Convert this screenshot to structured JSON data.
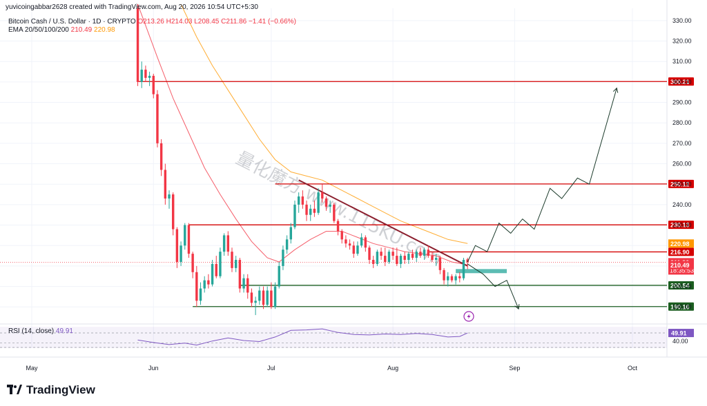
{
  "header": {
    "attribution": "yuvicoingabbar2628 created with TradingView.com, Aug 20, 2026 10:54 UTC+5:30",
    "symbol": "Bitcoin Cash / U.S. Dollar · 1D · CRYPTO",
    "ohlc": "O213.26  H214.03  L208.45  C211.86  −1.41 (−0.66%)",
    "ema_label": "EMA 20/50/100/200",
    "ema20_value": "210.49",
    "ema50_value": "220.98"
  },
  "rsi": {
    "label": "RSI (14, close)",
    "value": "49.91",
    "axis_label": "40.00"
  },
  "watermark": "量化魔方 www.115KU.com",
  "brand": "TradingView",
  "colors": {
    "up": "#26a69a",
    "down": "#f23645",
    "ema20": "#f23645",
    "ema50": "#ff9800",
    "support": "#1b5e20",
    "resistance": "#d50000",
    "rsi": "#7e57c2"
  },
  "chart_data": {
    "type": "candlestick",
    "price_axis": {
      "range": [
        183,
        334
      ],
      "ticks": [
        190,
        200,
        210,
        220,
        230,
        240,
        250,
        260,
        270,
        280,
        290,
        300,
        310,
        320,
        330
      ],
      "tick_labels": [
        "190.00",
        "200.00",
        "210.00",
        "220.00",
        "230.00",
        "240.00",
        "250.00",
        "260.00",
        "270.00",
        "280.00",
        "290.00",
        "300.00",
        "310.00",
        "320.00",
        "330.00"
      ]
    },
    "time_axis": {
      "labels": [
        {
          "label": "May",
          "date": "2026-05-01"
        },
        {
          "label": "Jun",
          "date": "2026-06-01"
        },
        {
          "label": "Jul",
          "date": "2026-07-01"
        },
        {
          "label": "Aug",
          "date": "2026-08-01"
        },
        {
          "label": "Sep",
          "date": "2026-09-01"
        },
        {
          "label": "Oct",
          "date": "2026-10-01"
        }
      ]
    },
    "levels": [
      {
        "price": 300.21,
        "label": "300.21",
        "kind": "resistance",
        "from": "2026-05-28"
      },
      {
        "price": 250.12,
        "label": "250.12",
        "kind": "resistance",
        "from": "2026-07-02"
      },
      {
        "price": 230.13,
        "label": "230.13",
        "kind": "resistance",
        "from": "2026-06-10"
      },
      {
        "price": 216.9,
        "label": "216.90",
        "kind": "resistance",
        "from": "2026-08-10"
      },
      {
        "price": 200.54,
        "label": "200.54",
        "kind": "support",
        "from": "2026-06-23"
      },
      {
        "price": 190.16,
        "label": "190.16",
        "kind": "support",
        "from": "2026-06-11"
      }
    ],
    "price_tags": [
      {
        "price": 220.98,
        "label": "220.98",
        "color": "#ff9800"
      },
      {
        "price": 211.86,
        "label": "211.86",
        "sub": "18:35:53",
        "color": "#f23645"
      },
      {
        "price": 210.49,
        "label": "210.49",
        "color": "#f23645"
      }
    ],
    "candles": [
      {
        "d": "2026-05-28",
        "o": 336,
        "h": 338,
        "l": 298,
        "c": 300
      },
      {
        "d": "2026-05-29",
        "o": 300,
        "h": 310,
        "l": 297,
        "c": 306
      },
      {
        "d": "2026-05-30",
        "o": 306,
        "h": 308,
        "l": 300,
        "c": 302
      },
      {
        "d": "2026-05-31",
        "o": 302,
        "h": 305,
        "l": 298,
        "c": 303
      },
      {
        "d": "2026-06-01",
        "o": 303,
        "h": 304,
        "l": 292,
        "c": 294
      },
      {
        "d": "2026-06-02",
        "o": 294,
        "h": 296,
        "l": 268,
        "c": 270
      },
      {
        "d": "2026-06-03",
        "o": 270,
        "h": 272,
        "l": 254,
        "c": 257
      },
      {
        "d": "2026-06-04",
        "o": 257,
        "h": 260,
        "l": 240,
        "c": 243
      },
      {
        "d": "2026-06-05",
        "o": 243,
        "h": 247,
        "l": 238,
        "c": 245
      },
      {
        "d": "2026-06-06",
        "o": 245,
        "h": 246,
        "l": 225,
        "c": 228
      },
      {
        "d": "2026-06-07",
        "o": 228,
        "h": 229,
        "l": 209,
        "c": 212
      },
      {
        "d": "2026-06-08",
        "o": 212,
        "h": 222,
        "l": 210,
        "c": 220
      },
      {
        "d": "2026-06-09",
        "o": 220,
        "h": 231,
        "l": 218,
        "c": 230
      },
      {
        "d": "2026-06-10",
        "o": 230,
        "h": 231,
        "l": 214,
        "c": 216
      },
      {
        "d": "2026-06-11",
        "o": 216,
        "h": 217,
        "l": 204,
        "c": 207
      },
      {
        "d": "2026-06-12",
        "o": 207,
        "h": 210,
        "l": 190,
        "c": 193
      },
      {
        "d": "2026-06-13",
        "o": 193,
        "h": 202,
        "l": 191,
        "c": 199
      },
      {
        "d": "2026-06-14",
        "o": 199,
        "h": 205,
        "l": 197,
        "c": 203
      },
      {
        "d": "2026-06-15",
        "o": 203,
        "h": 206,
        "l": 199,
        "c": 201
      },
      {
        "d": "2026-06-16",
        "o": 201,
        "h": 213,
        "l": 200,
        "c": 211
      },
      {
        "d": "2026-06-17",
        "o": 211,
        "h": 215,
        "l": 204,
        "c": 205
      },
      {
        "d": "2026-06-18",
        "o": 205,
        "h": 219,
        "l": 204,
        "c": 217
      },
      {
        "d": "2026-06-19",
        "o": 217,
        "h": 226,
        "l": 215,
        "c": 225
      },
      {
        "d": "2026-06-20",
        "o": 225,
        "h": 227,
        "l": 215,
        "c": 217
      },
      {
        "d": "2026-06-21",
        "o": 217,
        "h": 219,
        "l": 207,
        "c": 209
      },
      {
        "d": "2026-06-22",
        "o": 209,
        "h": 215,
        "l": 207,
        "c": 213
      },
      {
        "d": "2026-06-23",
        "o": 213,
        "h": 214,
        "l": 197,
        "c": 199
      },
      {
        "d": "2026-06-24",
        "o": 199,
        "h": 206,
        "l": 197,
        "c": 204
      },
      {
        "d": "2026-06-25",
        "o": 204,
        "h": 206,
        "l": 194,
        "c": 197
      },
      {
        "d": "2026-06-26",
        "o": 197,
        "h": 199,
        "l": 190,
        "c": 192
      },
      {
        "d": "2026-06-27",
        "o": 192,
        "h": 195,
        "l": 186,
        "c": 193
      },
      {
        "d": "2026-06-28",
        "o": 193,
        "h": 200,
        "l": 191,
        "c": 198
      },
      {
        "d": "2026-06-29",
        "o": 198,
        "h": 200,
        "l": 189,
        "c": 191
      },
      {
        "d": "2026-06-30",
        "o": 191,
        "h": 200,
        "l": 190,
        "c": 198
      },
      {
        "d": "2026-07-01",
        "o": 198,
        "h": 202,
        "l": 189,
        "c": 190
      },
      {
        "d": "2026-07-02",
        "o": 190,
        "h": 202,
        "l": 189,
        "c": 200
      },
      {
        "d": "2026-07-03",
        "o": 200,
        "h": 212,
        "l": 199,
        "c": 210
      },
      {
        "d": "2026-07-04",
        "o": 210,
        "h": 220,
        "l": 208,
        "c": 218
      },
      {
        "d": "2026-07-05",
        "o": 218,
        "h": 225,
        "l": 216,
        "c": 223
      },
      {
        "d": "2026-07-06",
        "o": 223,
        "h": 231,
        "l": 221,
        "c": 229
      },
      {
        "d": "2026-07-07",
        "o": 229,
        "h": 242,
        "l": 228,
        "c": 240
      },
      {
        "d": "2026-07-08",
        "o": 240,
        "h": 246,
        "l": 236,
        "c": 244
      },
      {
        "d": "2026-07-09",
        "o": 244,
        "h": 247,
        "l": 238,
        "c": 240
      },
      {
        "d": "2026-07-10",
        "o": 240,
        "h": 242,
        "l": 232,
        "c": 235
      },
      {
        "d": "2026-07-11",
        "o": 235,
        "h": 240,
        "l": 232,
        "c": 238
      },
      {
        "d": "2026-07-12",
        "o": 238,
        "h": 242,
        "l": 234,
        "c": 236
      },
      {
        "d": "2026-07-13",
        "o": 236,
        "h": 248,
        "l": 235,
        "c": 246
      },
      {
        "d": "2026-07-14",
        "o": 246,
        "h": 250,
        "l": 241,
        "c": 243
      },
      {
        "d": "2026-07-15",
        "o": 243,
        "h": 244,
        "l": 237,
        "c": 239
      },
      {
        "d": "2026-07-16",
        "o": 239,
        "h": 242,
        "l": 236,
        "c": 240
      },
      {
        "d": "2026-07-17",
        "o": 240,
        "h": 241,
        "l": 231,
        "c": 232
      },
      {
        "d": "2026-07-18",
        "o": 232,
        "h": 233,
        "l": 225,
        "c": 227
      },
      {
        "d": "2026-07-19",
        "o": 227,
        "h": 228,
        "l": 221,
        "c": 223
      },
      {
        "d": "2026-07-20",
        "o": 223,
        "h": 225,
        "l": 219,
        "c": 221
      },
      {
        "d": "2026-07-21",
        "o": 221,
        "h": 223,
        "l": 218,
        "c": 220
      },
      {
        "d": "2026-07-22",
        "o": 220,
        "h": 222,
        "l": 214,
        "c": 216
      },
      {
        "d": "2026-07-23",
        "o": 216,
        "h": 222,
        "l": 215,
        "c": 220
      },
      {
        "d": "2026-07-24",
        "o": 220,
        "h": 226,
        "l": 219,
        "c": 224
      },
      {
        "d": "2026-07-25",
        "o": 224,
        "h": 225,
        "l": 217,
        "c": 219
      },
      {
        "d": "2026-07-26",
        "o": 219,
        "h": 220,
        "l": 211,
        "c": 213
      },
      {
        "d": "2026-07-27",
        "o": 213,
        "h": 215,
        "l": 209,
        "c": 211
      },
      {
        "d": "2026-07-28",
        "o": 211,
        "h": 218,
        "l": 210,
        "c": 217
      },
      {
        "d": "2026-07-29",
        "o": 217,
        "h": 219,
        "l": 213,
        "c": 215
      },
      {
        "d": "2026-07-30",
        "o": 215,
        "h": 219,
        "l": 210,
        "c": 212
      },
      {
        "d": "2026-07-31",
        "o": 212,
        "h": 218,
        "l": 211,
        "c": 217
      },
      {
        "d": "2026-08-01",
        "o": 217,
        "h": 219,
        "l": 213,
        "c": 215
      },
      {
        "d": "2026-08-02",
        "o": 215,
        "h": 219,
        "l": 210,
        "c": 211
      },
      {
        "d": "2026-08-03",
        "o": 211,
        "h": 216,
        "l": 209,
        "c": 215
      },
      {
        "d": "2026-08-04",
        "o": 215,
        "h": 217,
        "l": 211,
        "c": 213
      },
      {
        "d": "2026-08-05",
        "o": 213,
        "h": 217,
        "l": 211,
        "c": 216
      },
      {
        "d": "2026-08-06",
        "o": 216,
        "h": 218,
        "l": 213,
        "c": 214
      },
      {
        "d": "2026-08-07",
        "o": 214,
        "h": 218,
        "l": 212,
        "c": 217
      },
      {
        "d": "2026-08-08",
        "o": 217,
        "h": 219,
        "l": 214,
        "c": 215
      },
      {
        "d": "2026-08-09",
        "o": 215,
        "h": 219,
        "l": 213,
        "c": 218
      },
      {
        "d": "2026-08-10",
        "o": 218,
        "h": 220,
        "l": 214,
        "c": 215
      },
      {
        "d": "2026-08-11",
        "o": 215,
        "h": 217,
        "l": 212,
        "c": 213
      },
      {
        "d": "2026-08-12",
        "o": 213,
        "h": 216,
        "l": 210,
        "c": 214
      },
      {
        "d": "2026-08-13",
        "o": 214,
        "h": 215,
        "l": 206,
        "c": 208
      },
      {
        "d": "2026-08-14",
        "o": 208,
        "h": 209,
        "l": 201,
        "c": 203
      },
      {
        "d": "2026-08-15",
        "o": 203,
        "h": 207,
        "l": 200,
        "c": 205
      },
      {
        "d": "2026-08-16",
        "o": 205,
        "h": 206,
        "l": 202,
        "c": 203
      },
      {
        "d": "2026-08-17",
        "o": 203,
        "h": 206,
        "l": 201,
        "c": 205
      },
      {
        "d": "2026-08-18",
        "o": 205,
        "h": 207,
        "l": 202,
        "c": 204
      },
      {
        "d": "2026-08-19",
        "o": 204,
        "h": 214,
        "l": 203,
        "c": 213
      },
      {
        "d": "2026-08-20",
        "o": 213.26,
        "h": 214.03,
        "l": 208.45,
        "c": 211.86
      }
    ],
    "ema20": [
      {
        "d": "2026-05-28",
        "v": 338
      },
      {
        "d": "2026-06-02",
        "v": 312
      },
      {
        "d": "2026-06-06",
        "v": 292
      },
      {
        "d": "2026-06-10",
        "v": 275
      },
      {
        "d": "2026-06-14",
        "v": 258
      },
      {
        "d": "2026-06-18",
        "v": 245
      },
      {
        "d": "2026-06-22",
        "v": 233
      },
      {
        "d": "2026-06-26",
        "v": 222
      },
      {
        "d": "2026-06-30",
        "v": 214
      },
      {
        "d": "2026-07-03",
        "v": 212
      },
      {
        "d": "2026-07-07",
        "v": 218
      },
      {
        "d": "2026-07-11",
        "v": 223
      },
      {
        "d": "2026-07-15",
        "v": 227
      },
      {
        "d": "2026-07-19",
        "v": 227
      },
      {
        "d": "2026-07-23",
        "v": 224
      },
      {
        "d": "2026-07-27",
        "v": 221
      },
      {
        "d": "2026-07-31",
        "v": 219
      },
      {
        "d": "2026-08-04",
        "v": 217
      },
      {
        "d": "2026-08-08",
        "v": 216
      },
      {
        "d": "2026-08-12",
        "v": 215
      },
      {
        "d": "2026-08-16",
        "v": 212
      },
      {
        "d": "2026-08-20",
        "v": 210.49
      }
    ],
    "ema50": [
      {
        "d": "2026-06-08",
        "v": 338
      },
      {
        "d": "2026-06-12",
        "v": 322
      },
      {
        "d": "2026-06-16",
        "v": 308
      },
      {
        "d": "2026-06-20",
        "v": 296
      },
      {
        "d": "2026-06-24",
        "v": 284
      },
      {
        "d": "2026-06-28",
        "v": 272
      },
      {
        "d": "2026-07-02",
        "v": 262
      },
      {
        "d": "2026-07-06",
        "v": 256
      },
      {
        "d": "2026-07-10",
        "v": 254
      },
      {
        "d": "2026-07-14",
        "v": 252
      },
      {
        "d": "2026-07-18",
        "v": 248
      },
      {
        "d": "2026-07-22",
        "v": 244
      },
      {
        "d": "2026-07-26",
        "v": 240
      },
      {
        "d": "2026-07-30",
        "v": 236
      },
      {
        "d": "2026-08-03",
        "v": 232
      },
      {
        "d": "2026-08-07",
        "v": 229
      },
      {
        "d": "2026-08-11",
        "v": 226
      },
      {
        "d": "2026-08-15",
        "v": 223
      },
      {
        "d": "2026-08-20",
        "v": 220.98
      }
    ],
    "trendline": {
      "from": {
        "d": "2026-07-08",
        "v": 252
      },
      "to": {
        "d": "2026-08-20",
        "v": 210
      }
    },
    "projection_up": [
      {
        "d": "2026-08-20",
        "v": 212
      },
      {
        "d": "2026-08-22",
        "v": 220
      },
      {
        "d": "2026-08-25",
        "v": 217
      },
      {
        "d": "2026-08-28",
        "v": 231
      },
      {
        "d": "2026-08-31",
        "v": 226
      },
      {
        "d": "2026-09-03",
        "v": 233
      },
      {
        "d": "2026-09-06",
        "v": 228
      },
      {
        "d": "2026-09-10",
        "v": 248
      },
      {
        "d": "2026-09-13",
        "v": 243
      },
      {
        "d": "2026-09-17",
        "v": 253
      },
      {
        "d": "2026-09-20",
        "v": 250
      },
      {
        "d": "2026-09-27",
        "v": 297
      }
    ],
    "projection_down": [
      {
        "d": "2026-08-20",
        "v": 211
      },
      {
        "d": "2026-08-24",
        "v": 206
      },
      {
        "d": "2026-08-27",
        "v": 200
      },
      {
        "d": "2026-08-30",
        "v": 203
      },
      {
        "d": "2026-09-02",
        "v": 189
      }
    ],
    "zone": {
      "from": "2026-08-17",
      "to": "2026-08-30",
      "low": 206.5,
      "high": 208.5
    },
    "rsi_axis": {
      "range": [
        20,
        65
      ],
      "guides": [
        30,
        50,
        70
      ]
    },
    "rsi_series": [
      {
        "d": "2026-05-28",
        "v": 36
      },
      {
        "d": "2026-06-01",
        "v": 31
      },
      {
        "d": "2026-06-05",
        "v": 27
      },
      {
        "d": "2026-06-09",
        "v": 30
      },
      {
        "d": "2026-06-12",
        "v": 26
      },
      {
        "d": "2026-06-16",
        "v": 34
      },
      {
        "d": "2026-06-20",
        "v": 40
      },
      {
        "d": "2026-06-24",
        "v": 35
      },
      {
        "d": "2026-06-28",
        "v": 33
      },
      {
        "d": "2026-07-02",
        "v": 42
      },
      {
        "d": "2026-07-06",
        "v": 55
      },
      {
        "d": "2026-07-10",
        "v": 56
      },
      {
        "d": "2026-07-14",
        "v": 58
      },
      {
        "d": "2026-07-18",
        "v": 51
      },
      {
        "d": "2026-07-22",
        "v": 47
      },
      {
        "d": "2026-07-26",
        "v": 46
      },
      {
        "d": "2026-07-30",
        "v": 48
      },
      {
        "d": "2026-08-03",
        "v": 47
      },
      {
        "d": "2026-08-07",
        "v": 49
      },
      {
        "d": "2026-08-11",
        "v": 47
      },
      {
        "d": "2026-08-15",
        "v": 42
      },
      {
        "d": "2026-08-18",
        "v": 43
      },
      {
        "d": "2026-08-20",
        "v": 49.91
      }
    ]
  }
}
